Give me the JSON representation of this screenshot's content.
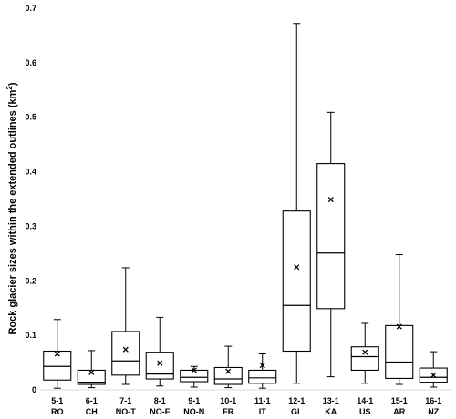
{
  "chart_data": {
    "type": "box",
    "ylabel_main": "Rock glacier sizes within the extended outlines (km",
    "ylabel_sup": "2",
    "ylabel_close": ")",
    "xlabel": "",
    "ylim": [
      0,
      0.7
    ],
    "yticks": [
      "0",
      "0.1",
      "0.2",
      "0.3",
      "0.4",
      "0.5",
      "0.6",
      "0.7"
    ],
    "grid": false,
    "legend": "none",
    "categories": [
      {
        "code": "5-1",
        "name": "RO"
      },
      {
        "code": "6-1",
        "name": "CH"
      },
      {
        "code": "7-1",
        "name": "NO-T"
      },
      {
        "code": "8-1",
        "name": "NO-F"
      },
      {
        "code": "9-1",
        "name": "NO-N"
      },
      {
        "code": "10-1",
        "name": "FR"
      },
      {
        "code": "11-1",
        "name": "IT"
      },
      {
        "code": "12-1",
        "name": "GL"
      },
      {
        "code": "13-1",
        "name": "KA"
      },
      {
        "code": "14-1",
        "name": "US"
      },
      {
        "code": "15-1",
        "name": "AR"
      },
      {
        "code": "16-1",
        "name": "NZ"
      }
    ],
    "boxes": [
      {
        "min": 0.003,
        "q1": 0.018,
        "median": 0.043,
        "q3": 0.071,
        "max": 0.129,
        "mean": 0.066
      },
      {
        "min": 0.004,
        "q1": 0.01,
        "median": 0.014,
        "q3": 0.036,
        "max": 0.072,
        "mean": 0.032
      },
      {
        "min": 0.01,
        "q1": 0.027,
        "median": 0.053,
        "q3": 0.107,
        "max": 0.224,
        "mean": 0.074
      },
      {
        "min": 0.007,
        "q1": 0.02,
        "median": 0.029,
        "q3": 0.069,
        "max": 0.133,
        "mean": 0.049
      },
      {
        "min": 0.005,
        "q1": 0.015,
        "median": 0.023,
        "q3": 0.036,
        "max": 0.043,
        "mean": 0.036
      },
      {
        "min": 0.004,
        "q1": 0.01,
        "median": 0.02,
        "q3": 0.041,
        "max": 0.08,
        "mean": 0.034
      },
      {
        "min": 0.003,
        "q1": 0.012,
        "median": 0.022,
        "q3": 0.036,
        "max": 0.066,
        "mean": 0.045
      },
      {
        "min": 0.012,
        "q1": 0.071,
        "median": 0.155,
        "q3": 0.328,
        "max": 0.672,
        "mean": 0.225
      },
      {
        "min": 0.024,
        "q1": 0.149,
        "median": 0.251,
        "q3": 0.415,
        "max": 0.509,
        "mean": 0.349
      },
      {
        "min": 0.012,
        "q1": 0.036,
        "median": 0.061,
        "q3": 0.079,
        "max": 0.122,
        "mean": 0.069
      },
      {
        "min": 0.01,
        "q1": 0.021,
        "median": 0.051,
        "q3": 0.118,
        "max": 0.248,
        "mean": 0.116
      },
      {
        "min": 0.005,
        "q1": 0.014,
        "median": 0.023,
        "q3": 0.04,
        "max": 0.07,
        "mean": 0.027
      }
    ],
    "colors": {
      "stroke": "#000000",
      "fill": "#ffffff",
      "axis": "#d9d9d9"
    }
  }
}
